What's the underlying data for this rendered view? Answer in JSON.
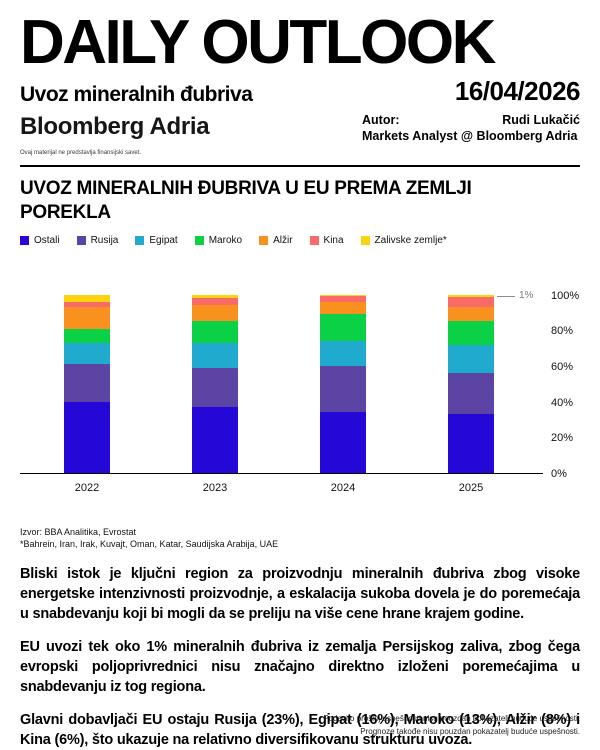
{
  "header": {
    "title": "DAILY OUTLOOK",
    "subtitle": "Uvoz mineralnih đubriva",
    "date": "16/04/2026",
    "brand": "Bloomberg Adria",
    "disclaimer": "Ovaj materijal ne predstavlja finansijski savet.",
    "author_label": "Autor:",
    "author_name": "Rudi Lukačić",
    "author_role": "Markets Analyst @ Bloomberg Adria"
  },
  "chart": {
    "title": "UVOZ MINERALNIH ĐUBRIVA U EU PREMA ZEMLJI POREKLA",
    "annotation": "1%",
    "source_line1": "Izvor: BBA Analitika, Evrostat",
    "source_line2": "*Bahrein, Iran, Irak, Kuvajt, Oman, Katar, Saudijska Arabija, UAE"
  },
  "chart_data": {
    "type": "bar",
    "stacked": true,
    "normalized_percent": true,
    "title": "UVOZ MINERALNIH ĐUBRIVA U EU PREMA ZEMLJI POREKLA",
    "categories": [
      "2022",
      "2023",
      "2024",
      "2025"
    ],
    "series": [
      {
        "name": "Ostali",
        "color": "#2508d8",
        "values": [
          40,
          37,
          34,
          33
        ]
      },
      {
        "name": "Rusija",
        "color": "#5b44a3",
        "values": [
          21,
          22,
          26,
          23
        ]
      },
      {
        "name": "Egipat",
        "color": "#1faace",
        "values": [
          12,
          14,
          14,
          16
        ]
      },
      {
        "name": "Maroko",
        "color": "#0bd147",
        "values": [
          8,
          12,
          15,
          13
        ]
      },
      {
        "name": "Alžir",
        "color": "#f8911d",
        "values": [
          12,
          9,
          7,
          8
        ]
      },
      {
        "name": "Kina",
        "color": "#fa6b68",
        "values": [
          3,
          4,
          3.5,
          6
        ]
      },
      {
        "name": "Zalivske zemlje*",
        "color": "#fbd30f",
        "values": [
          4,
          2,
          0.5,
          1
        ]
      }
    ],
    "ylim": [
      0,
      100
    ],
    "y_ticks": [
      "0%",
      "20%",
      "40%",
      "60%",
      "80%",
      "100%"
    ],
    "legend_position": "top",
    "annotation": {
      "text": "1%",
      "target": "2025 Zalivske zemlje* segment"
    }
  },
  "body": {
    "paragraph1": "Bliski istok je ključni region za proizvodnju mineralnih đubriva zbog visoke energetske intenzivnosti proizvodnje, a eskalacija sukoba dovela je do poremećaja u snabdevanju koji bi mogli da se preliju na više cene hrane krajem godine.",
    "paragraph2": "EU uvozi tek oko 1% mineralnih đubriva iz zemalja Persijskog zaliva, zbog čega evropski poljoprivrednici nisu značajno direktno izloženi poremećajima u snabdevanju iz tog regiona.",
    "paragraph3": "Glavni dobavljači EU ostaju Rusija (23%), Egipat (16%), Maroko (13%), Alžir (8%) i Kina (6%), što ukazuje na relativno diversifikovanu strukturu uvoza."
  },
  "footer": {
    "line1": "Podaci o prošloj uspešnosti nisu pouzdan pokazatelj buduće uspešnosti.",
    "line2": "Prognoze takođe nisu pouzdan pokazatelj buduće uspešnosti."
  }
}
